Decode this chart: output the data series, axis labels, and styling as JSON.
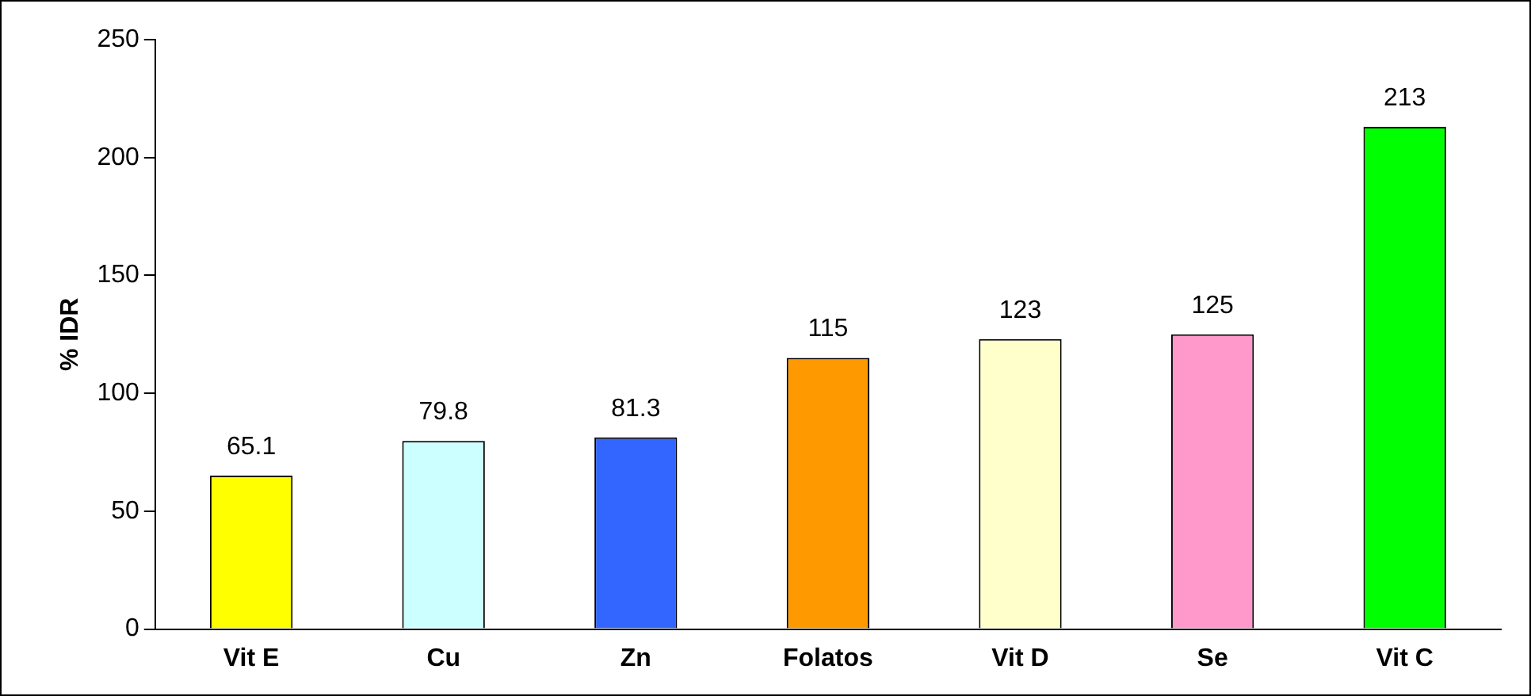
{
  "chart_data": {
    "type": "bar",
    "ylabel": "% IDR",
    "categories": [
      "Vit E",
      "Cu",
      "Zn",
      "Folatos",
      "Vit D",
      "Se",
      "Vit C"
    ],
    "values": [
      65.1,
      79.8,
      81.3,
      115,
      123,
      125,
      213
    ],
    "colors": [
      "#ffff00",
      "#ccffff",
      "#3366ff",
      "#ff9900",
      "#ffffcc",
      "#ff99cc",
      "#00ff00"
    ],
    "ylim": [
      0,
      250
    ],
    "yticks": [
      0,
      50,
      100,
      150,
      200,
      250
    ],
    "grid": false,
    "legend": false,
    "data_labels": true
  }
}
